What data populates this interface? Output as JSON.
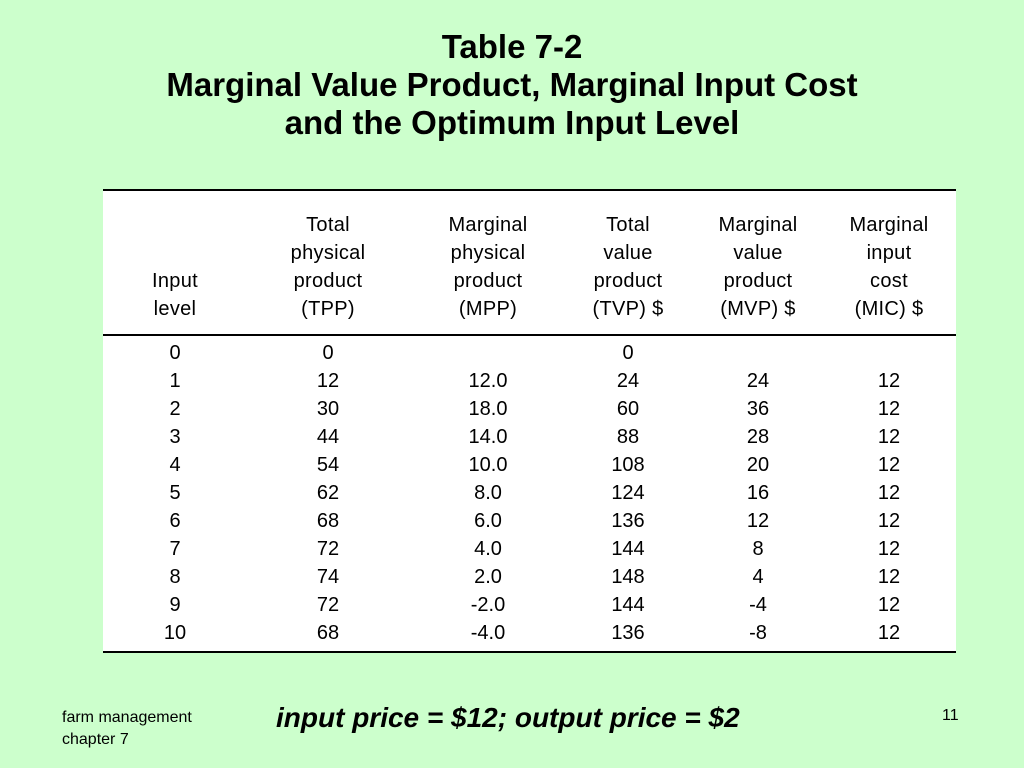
{
  "title": {
    "line1": "Table 7-2",
    "line2": "Marginal Value Product, Marginal Input Cost",
    "line3": "and the Optimum Input Level"
  },
  "table": {
    "columns": [
      [
        "",
        "",
        "Input",
        "level"
      ],
      [
        "Total",
        "physical",
        "product",
        "(TPP)"
      ],
      [
        "Marginal",
        "physical",
        "product",
        "(MPP)"
      ],
      [
        "Total",
        "value",
        "product",
        "(TVP) $"
      ],
      [
        "Marginal",
        "value",
        "product",
        "(MVP) $"
      ],
      [
        "Marginal",
        "input",
        "cost",
        "(MIC) $"
      ]
    ],
    "rows": [
      [
        "0",
        "0",
        "",
        "0",
        "",
        ""
      ],
      [
        "1",
        "12",
        "12.0",
        "24",
        "24",
        "12"
      ],
      [
        "2",
        "30",
        "18.0",
        "60",
        "36",
        "12"
      ],
      [
        "3",
        "44",
        "14.0",
        "88",
        "28",
        "12"
      ],
      [
        "4",
        "54",
        "10.0",
        "108",
        "20",
        "12"
      ],
      [
        "5",
        "62",
        "8.0",
        "124",
        "16",
        "12"
      ],
      [
        "6",
        "68",
        "6.0",
        "136",
        "12",
        "12"
      ],
      [
        "7",
        "72",
        "4.0",
        "144",
        "8",
        "12"
      ],
      [
        "8",
        "74",
        "2.0",
        "148",
        "4",
        "12"
      ],
      [
        "9",
        "72",
        "-2.0",
        "144",
        "-4",
        "12"
      ],
      [
        "10",
        "68",
        "-4.0",
        "136",
        "-8",
        "12"
      ]
    ]
  },
  "footer": {
    "left_line1": "farm management",
    "left_line2": "chapter 7",
    "center": "input price = $12; output price = $2",
    "page_number": "11"
  }
}
